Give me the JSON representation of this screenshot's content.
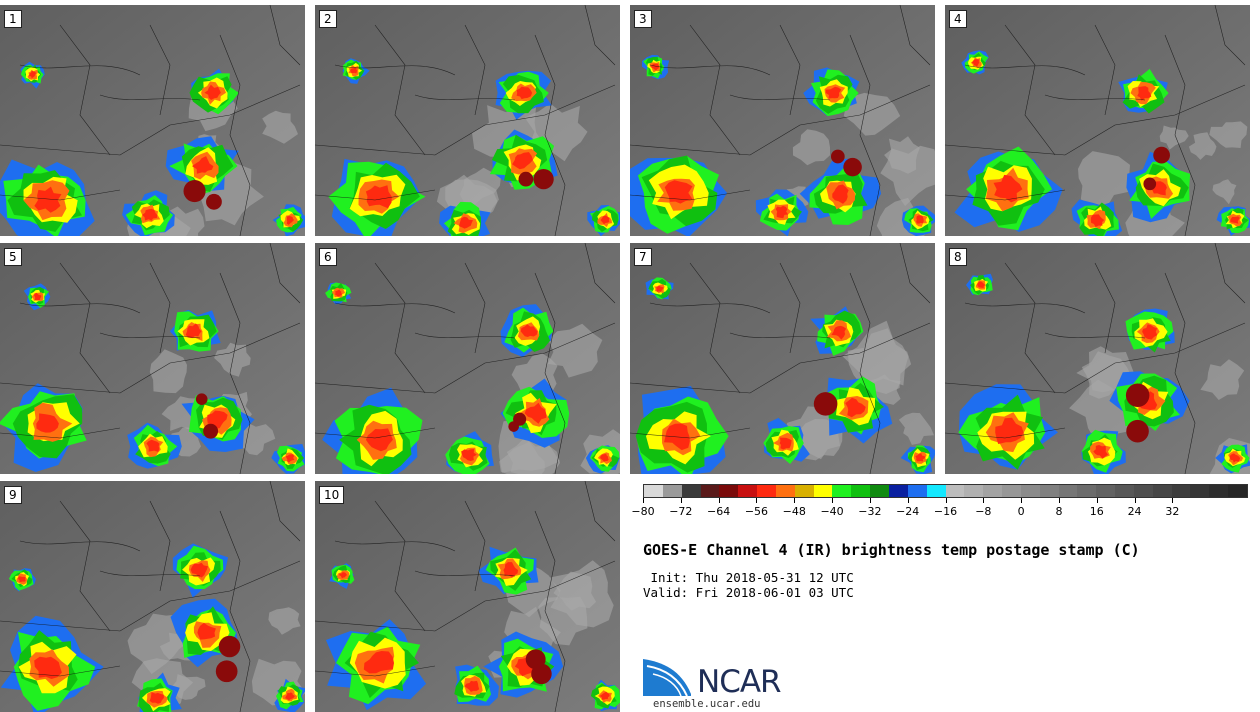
{
  "panels": [
    {
      "label": "1"
    },
    {
      "label": "2"
    },
    {
      "label": "3"
    },
    {
      "label": "4"
    },
    {
      "label": "5"
    },
    {
      "label": "6"
    },
    {
      "label": "7"
    },
    {
      "label": "8"
    },
    {
      "label": "9"
    },
    {
      "label": "10"
    }
  ],
  "colorbar": {
    "colors": [
      "#d9d9d9",
      "#9a9a9a",
      "#3a3a3a",
      "#5a1a1a",
      "#7a0a0a",
      "#c81010",
      "#ff2a10",
      "#ff7010",
      "#d8b000",
      "#ffff00",
      "#20f020",
      "#10c010",
      "#108a10",
      "#0a20a0",
      "#1e6ef0",
      "#14e8ff",
      "#bdbdbd",
      "#b0b0b0",
      "#a3a3a3",
      "#979797",
      "#8b8b8b",
      "#808080",
      "#767676",
      "#6c6c6c",
      "#626262",
      "#585858",
      "#4f4f4f",
      "#464646",
      "#3d3d3d",
      "#353535",
      "#2d2d2d",
      "#262626"
    ],
    "ticks": [
      "−80",
      "−72",
      "−64",
      "−56",
      "−48",
      "−40",
      "−32",
      "−24",
      "−16",
      "−8",
      "0",
      "8",
      "16",
      "24",
      "32"
    ],
    "min": -80,
    "max": 48
  },
  "title": "GOES-E Channel 4 (IR) brightness temp postage stamp (C)",
  "init_line": " Init: Thu 2018-05-31 12 UTC",
  "valid_line": "Valid: Fri 2018-06-01 03 UTC",
  "logo": {
    "text": "NCAR",
    "url": "ensemble.ucar.edu",
    "brand_color": "#1e7bd0"
  }
}
